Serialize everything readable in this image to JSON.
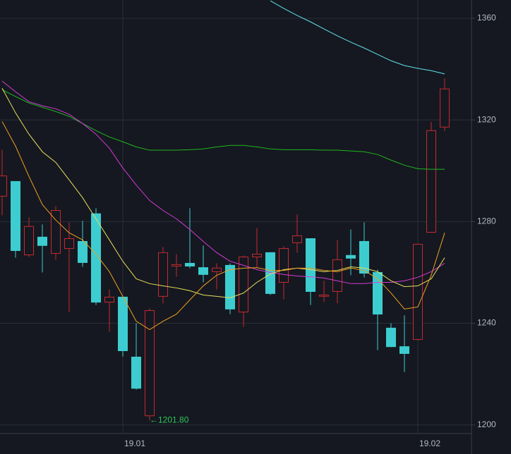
{
  "chart_data": {
    "type": "candlestick",
    "x": [
      null,
      null,
      null,
      null,
      null,
      null,
      null,
      null,
      null,
      "19.01",
      null,
      null,
      null,
      null,
      null,
      null,
      null,
      null,
      null,
      null,
      null,
      null,
      null,
      null,
      null,
      null,
      null,
      null,
      null,
      null,
      null,
      "19.02",
      null,
      null
    ],
    "open": [
      1290,
      1295.8,
      1266.9,
      1273.9,
      1267.5,
      1269.4,
      1272.2,
      1283.1,
      1248.3,
      1250.3,
      1226.7,
      1203.6,
      1250.6,
      1262.5,
      1263.6,
      1261.9,
      1260.3,
      1262.8,
      1244.4,
      1266.1,
      1267.8,
      1256.1,
      1271.7,
      1273.3,
      1250.6,
      1252.5,
      1266.7,
      1272.2,
      1260,
      1238.1,
      1230.8,
      1233.6,
      1275.8,
      1317.2
    ],
    "high": [
      1308.3,
      1295.8,
      1281.7,
      1278.9,
      1286.1,
      1279.7,
      1280.3,
      1285.3,
      1253.3,
      1250.3,
      1240,
      1245.8,
      1270,
      1267.2,
      1285.3,
      1270.6,
      1263.6,
      1263.6,
      1266.7,
      1277.5,
      1267.8,
      1270.3,
      1282.8,
      1273.3,
      1256.7,
      1272.8,
      1276.9,
      1279.7,
      1261.1,
      1240,
      1243.1,
      1271.1,
      1319.2,
      1336.4
    ],
    "low": [
      1282.5,
      1265.8,
      1266.1,
      1260,
      1265,
      1244.4,
      1262.2,
      1247.2,
      1236.7,
      1226.9,
      1213.9,
      1201.8,
      1247.8,
      1258.3,
      1261.7,
      1256.1,
      1253.3,
      1243.6,
      1238.6,
      1262,
      1251.1,
      1249.4,
      1267.8,
      1247.2,
      1248.3,
      1247.8,
      1258.9,
      1258,
      1229.4,
      1230.6,
      1220.8,
      1233.3,
      1275.6,
      1315.6
    ],
    "close": [
      1298,
      1268.6,
      1278.1,
      1270.6,
      1284.4,
      1273.3,
      1263.9,
      1248.3,
      1250.3,
      1229.2,
      1214.4,
      1245,
      1267.8,
      1263.1,
      1262.5,
      1259.2,
      1261.7,
      1245.6,
      1266.1,
      1267.2,
      1251.7,
      1269.4,
      1274.4,
      1252.5,
      1251.1,
      1265,
      1265.6,
      1259.7,
      1243.6,
      1230.8,
      1228.1,
      1271.1,
      1315.8,
      1332.2
    ],
    "up_color": "#c42a30",
    "down_color": "#3dcdd0",
    "lines": [
      {
        "color": "#5fe3ea",
        "values": [
          null,
          null,
          null,
          null,
          null,
          null,
          null,
          null,
          null,
          null,
          null,
          null,
          null,
          null,
          null,
          null,
          null,
          null,
          null,
          null,
          1366.9,
          1363.9,
          1361.1,
          1358.6,
          1355.8,
          1353.1,
          1350.6,
          1348.3,
          1345.8,
          1343.3,
          1341.4,
          1340.3,
          1339.4,
          1338.1
        ]
      },
      {
        "color": "#1fb51f",
        "values": [
          1331.9,
          1329.2,
          1326.7,
          1325,
          1323.3,
          1321.4,
          1318.6,
          1315.8,
          1313.3,
          1311.4,
          1309.4,
          1308.1,
          1308.1,
          1308.1,
          1308.3,
          1308.6,
          1309.4,
          1310,
          1310,
          1309.4,
          1308.6,
          1308.3,
          1308.3,
          1308.3,
          1308.1,
          1308.1,
          1307.8,
          1307.5,
          1306.4,
          1304.2,
          1302.2,
          1300.8,
          1300.6,
          1300.6
        ]
      },
      {
        "color": "#d63ad6",
        "values": [
          1335.3,
          1331.1,
          1327.2,
          1325.6,
          1324.4,
          1322.2,
          1318.6,
          1314.4,
          1308.9,
          1301.1,
          1294.4,
          1288.3,
          1284.4,
          1281.1,
          1276.9,
          1272.2,
          1267.8,
          1264.4,
          1262.8,
          1261.1,
          1260,
          1259.2,
          1258.6,
          1258.3,
          1257.8,
          1256.7,
          1255.6,
          1255.6,
          1256.1,
          1256.1,
          1256.7,
          1258.1,
          1260.3,
          1263.6
        ]
      },
      {
        "color": "#e9df5a",
        "values": [
          1332.5,
          1322.8,
          1314.4,
          1307.5,
          1303.3,
          1296.4,
          1289.4,
          1281.1,
          1272.8,
          1264.4,
          1257.5,
          1255.6,
          1254.7,
          1253.9,
          1252.8,
          1251.1,
          1250.6,
          1250,
          1251.9,
          1256.1,
          1259.4,
          1261.1,
          1261.7,
          1261.1,
          1260.3,
          1260.8,
          1262.2,
          1261.7,
          1260.3,
          1256.7,
          1254.4,
          1254.7,
          1257.5,
          1265.8
        ]
      },
      {
        "color": "#f0a020",
        "values": [
          1319.4,
          1309.7,
          1297.8,
          1286.7,
          1280.6,
          1275.6,
          1272.8,
          1267.2,
          1260.3,
          1250.6,
          1240.8,
          1237.5,
          1240.8,
          1243.6,
          1249.2,
          1254.7,
          1258.9,
          1261.1,
          1261.7,
          1261.9,
          1260.8,
          1260.8,
          1261.7,
          1261.7,
          1260.8,
          1260.3,
          1261.7,
          1260.8,
          1257.5,
          1251.9,
          1245.6,
          1246.4,
          1258.9,
          1275.6
        ]
      }
    ],
    "annotation": {
      "text": "←1201.80",
      "index": 11,
      "color": "#2ec55a"
    },
    "ylim": [
      1196.6,
      1367.2
    ],
    "yticks": [
      1200,
      1240,
      1280,
      1320,
      1360
    ],
    "grid": true
  }
}
